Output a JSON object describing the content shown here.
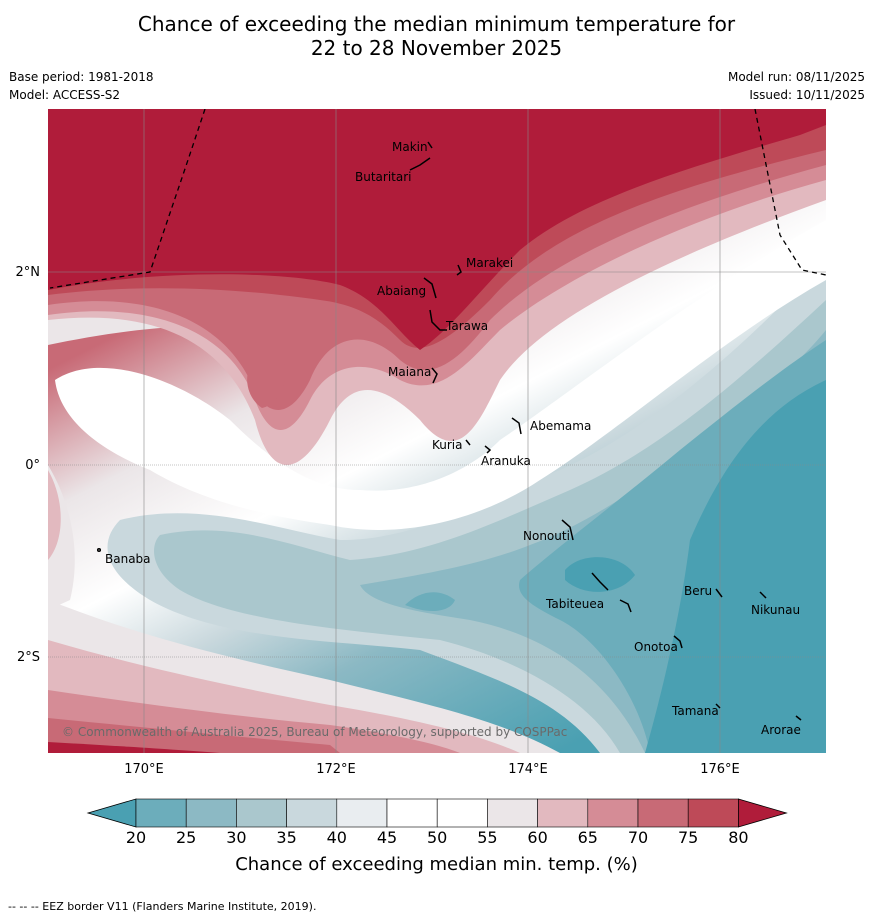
{
  "title": {
    "line1": "Chance of exceeding the median minimum temperature for",
    "line2": "22 to 28 November 2025"
  },
  "meta": {
    "base_period": "Base period: 1981-2018",
    "model": "Model: ACCESS-S2",
    "model_run": "Model run: 08/11/2025",
    "issued": "Issued: 10/11/2025"
  },
  "axes": {
    "lon_ticks": [
      "170°E",
      "172°E",
      "174°E",
      "176°E"
    ],
    "lat_ticks": [
      "2°N",
      "0°",
      "2°S"
    ]
  },
  "islands": {
    "makin": "Makin",
    "butaritari": "Butaritari",
    "marakei": "Marakei",
    "abaiang": "Abaiang",
    "tarawa": "Tarawa",
    "maiana": "Maiana",
    "abemama": "Abemama",
    "kuria": "Kuria",
    "aranuka": "Aranuka",
    "banaba": "Banaba",
    "nonouti": "Nonouti",
    "tabiteuea": "Tabiteuea",
    "beru": "Beru",
    "nikunau": "Nikunau",
    "onotoa": "Onotoa",
    "tamana": "Tamana",
    "arorae": "Arorae"
  },
  "copyright": "© Commonwealth of Australia 2025, Bureau of Meteorology, supported by COSPPac",
  "colorbar": {
    "ticks": [
      "20",
      "25",
      "30",
      "35",
      "40",
      "45",
      "50",
      "55",
      "60",
      "65",
      "70",
      "75",
      "80"
    ],
    "title": "Chance of exceeding median min. temp. (%)",
    "colors": [
      "#4aa0b2",
      "#6cadbb",
      "#8cb9c4",
      "#aac7cd",
      "#c9d8dd",
      "#e9edf0",
      "#ffffff",
      "#ffffff",
      "#ebe6e8",
      "#e2b9bf",
      "#d58c96",
      "#c86a76",
      "#be4a58",
      "#b01c3a"
    ]
  },
  "footnote": "--  --  -- EEZ border V11 (Flanders Marine Institute, 2019)."
}
